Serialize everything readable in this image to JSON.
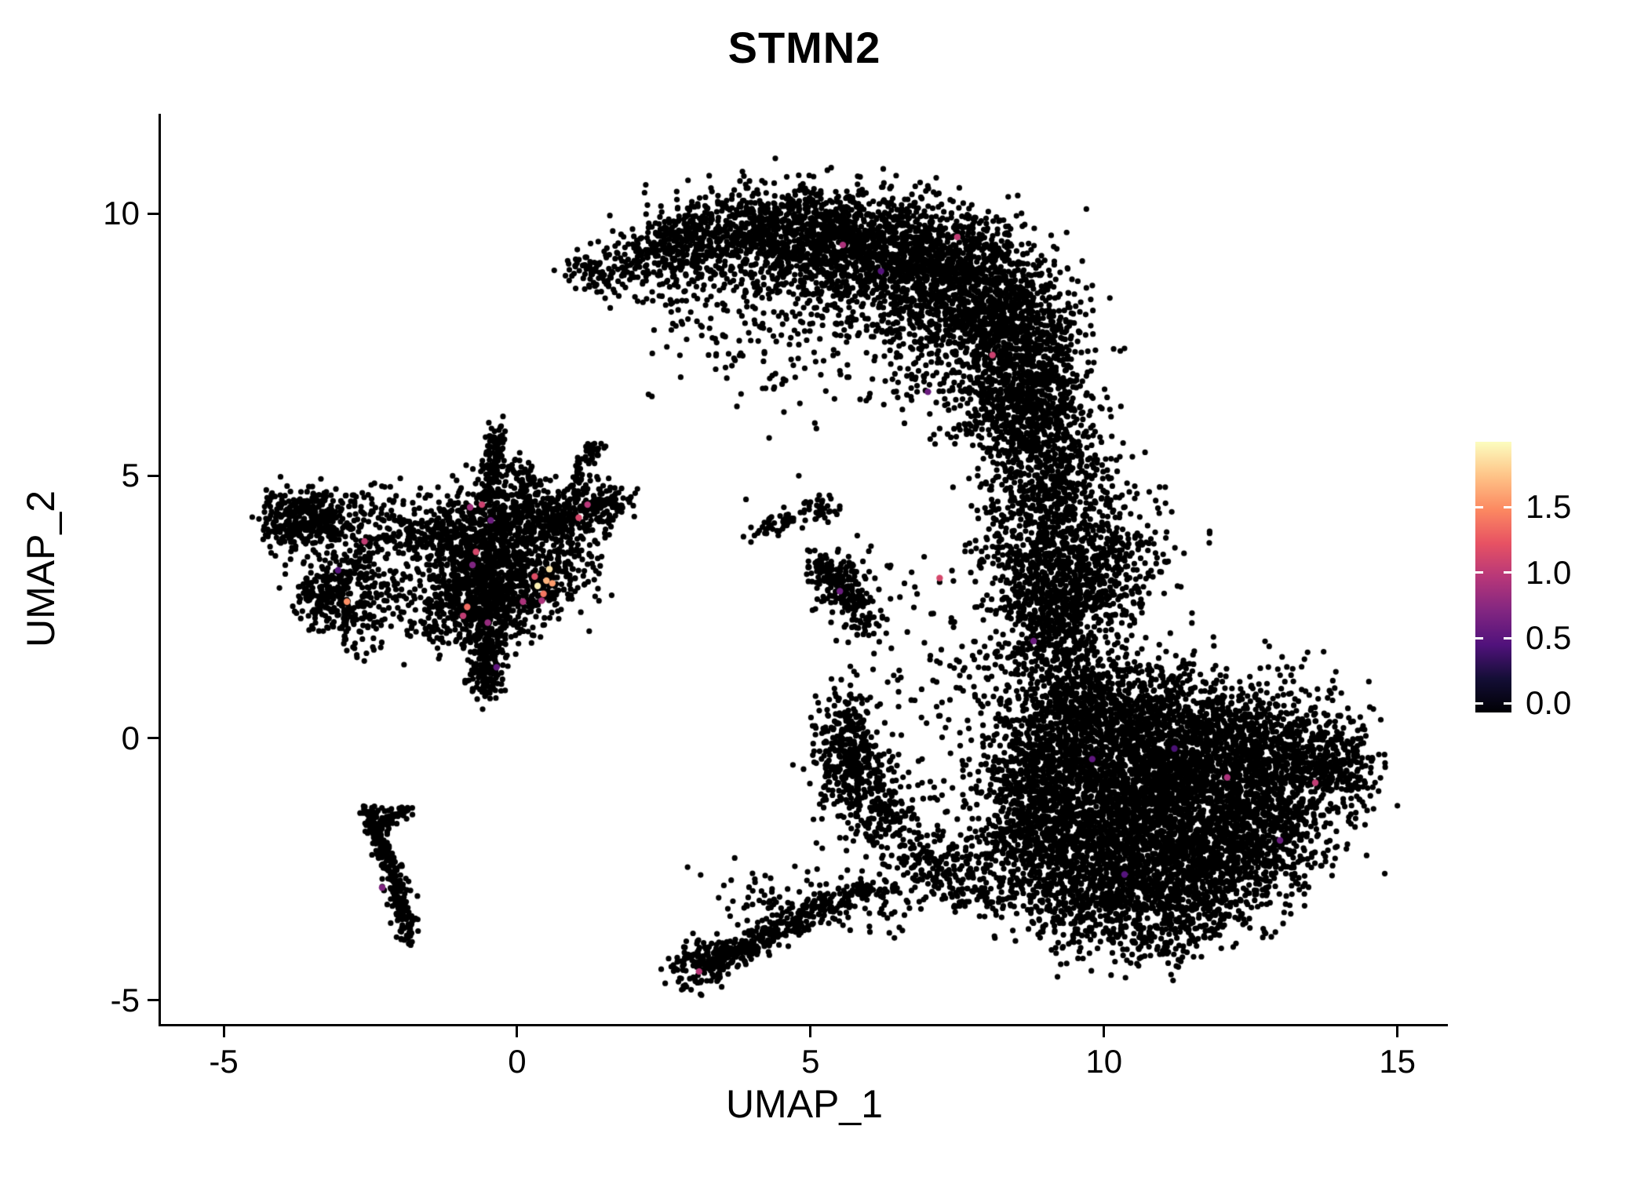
{
  "chart_data": {
    "type": "scatter",
    "title": "STMN2",
    "xlabel": "UMAP_1",
    "ylabel": "UMAP_2",
    "xlim": [
      -6.07,
      15.86
    ],
    "ylim": [
      -5.45,
      11.9
    ],
    "x_ticks": [
      {
        "v": -5,
        "label": "-5"
      },
      {
        "v": 0,
        "label": "0"
      },
      {
        "v": 5,
        "label": "5"
      },
      {
        "v": 10,
        "label": "10"
      },
      {
        "v": 15,
        "label": "15"
      }
    ],
    "y_ticks": [
      {
        "v": 10,
        "label": "10"
      },
      {
        "v": 5,
        "label": "5"
      },
      {
        "v": 0,
        "label": "0"
      },
      {
        "v": -5,
        "label": "-5"
      }
    ],
    "grid": false,
    "background": "#FFFFFF",
    "point_color": "#000000",
    "colorbar": {
      "vmin": -0.07,
      "vmax": 2.0,
      "data_max": 1.9,
      "ticks": [
        {
          "v": 0.0,
          "label": "0.0"
        },
        {
          "v": 0.5,
          "label": "0.5"
        },
        {
          "v": 1.0,
          "label": "1.0"
        },
        {
          "v": 1.5,
          "label": "1.5"
        }
      ],
      "stops": [
        "#000004",
        "#140E36",
        "#51127C",
        "#822681",
        "#B73779",
        "#E75263",
        "#FC8961",
        "#FEC488",
        "#FCFDBF"
      ]
    },
    "clusters": [
      {
        "c": [
          1.3,
          8.9
        ],
        "s": [
          0.25,
          0.2
        ],
        "n": 60
      },
      {
        "c": [
          2.0,
          9.1
        ],
        "s": [
          0.35,
          0.3
        ],
        "n": 110
      },
      {
        "c": [
          2.7,
          9.4
        ],
        "s": [
          0.4,
          0.35
        ],
        "n": 180
      },
      {
        "c": [
          3.5,
          9.6
        ],
        "s": [
          0.5,
          0.4
        ],
        "n": 280
      },
      {
        "c": [
          4.5,
          9.7
        ],
        "s": [
          0.6,
          0.45
        ],
        "n": 420
      },
      {
        "c": [
          5.6,
          9.5
        ],
        "s": [
          0.7,
          0.5
        ],
        "n": 560
      },
      {
        "c": [
          6.7,
          9.2
        ],
        "s": [
          0.8,
          0.55
        ],
        "n": 650
      },
      {
        "c": [
          7.6,
          8.7
        ],
        "s": [
          0.7,
          0.6
        ],
        "n": 600
      },
      {
        "c": [
          8.3,
          8.0
        ],
        "s": [
          0.6,
          0.6
        ],
        "n": 520
      },
      {
        "c": [
          8.7,
          7.1
        ],
        "s": [
          0.55,
          0.6
        ],
        "n": 470
      },
      {
        "c": [
          8.6,
          6.2
        ],
        "s": [
          0.6,
          0.5
        ],
        "n": 380
      },
      {
        "c": [
          6.0,
          8.3
        ],
        "s": [
          0.9,
          0.7
        ],
        "n": 170
      },
      {
        "c": [
          7.3,
          7.5
        ],
        "s": [
          0.8,
          0.7
        ],
        "n": 260
      },
      {
        "c": [
          5.0,
          8.8
        ],
        "s": [
          0.7,
          0.5
        ],
        "n": 190
      },
      {
        "c": [
          3.0,
          8.5
        ],
        "s": [
          0.5,
          0.5
        ],
        "n": 70
      },
      {
        "c": [
          3.6,
          7.7
        ],
        "s": [
          0.7,
          0.6
        ],
        "n": 55
      },
      {
        "c": [
          4.4,
          6.9
        ],
        "s": [
          0.5,
          0.5
        ],
        "n": 28
      },
      {
        "c": [
          8.9,
          5.5
        ],
        "s": [
          0.45,
          0.5
        ],
        "n": 230
      },
      {
        "c": [
          9.2,
          4.6
        ],
        "s": [
          0.5,
          0.55
        ],
        "n": 260
      },
      {
        "c": [
          9.0,
          3.7
        ],
        "s": [
          0.55,
          0.5
        ],
        "n": 280
      },
      {
        "c": [
          9.4,
          2.9
        ],
        "s": [
          0.6,
          0.5
        ],
        "n": 280
      },
      {
        "c": [
          8.3,
          4.6
        ],
        "s": [
          0.35,
          0.8
        ],
        "n": 70
      },
      {
        "c": [
          10.3,
          0.3
        ],
        "s": [
          0.7,
          0.7
        ],
        "n": 470
      },
      {
        "c": [
          11.2,
          0.2
        ],
        "s": [
          0.8,
          0.6
        ],
        "n": 470
      },
      {
        "c": [
          12.3,
          0.1
        ],
        "s": [
          0.8,
          0.6
        ],
        "n": 430
      },
      {
        "c": [
          13.3,
          -0.3
        ],
        "s": [
          0.6,
          0.5
        ],
        "n": 330
      },
      {
        "c": [
          14.0,
          -0.6
        ],
        "s": [
          0.35,
          0.4
        ],
        "n": 140
      },
      {
        "c": [
          10.6,
          -0.8
        ],
        "s": [
          0.9,
          0.7
        ],
        "n": 650
      },
      {
        "c": [
          11.8,
          -1.0
        ],
        "s": [
          0.9,
          0.7
        ],
        "n": 650
      },
      {
        "c": [
          12.9,
          -1.3
        ],
        "s": [
          0.7,
          0.6
        ],
        "n": 430
      },
      {
        "c": [
          10.2,
          -1.9
        ],
        "s": [
          0.8,
          0.6
        ],
        "n": 520
      },
      {
        "c": [
          11.3,
          -2.1
        ],
        "s": [
          0.8,
          0.6
        ],
        "n": 520
      },
      {
        "c": [
          12.3,
          -2.3
        ],
        "s": [
          0.7,
          0.5
        ],
        "n": 330
      },
      {
        "c": [
          10.6,
          -3.0
        ],
        "s": [
          0.7,
          0.5
        ],
        "n": 330
      },
      {
        "c": [
          11.6,
          -3.1
        ],
        "s": [
          0.6,
          0.45
        ],
        "n": 240
      },
      {
        "c": [
          9.4,
          -1.2
        ],
        "s": [
          0.6,
          0.8
        ],
        "n": 430
      },
      {
        "c": [
          9.0,
          -2.3
        ],
        "s": [
          0.5,
          0.6
        ],
        "n": 280
      },
      {
        "c": [
          9.6,
          -3.2
        ],
        "s": [
          0.5,
          0.45
        ],
        "n": 190
      },
      {
        "c": [
          10.9,
          -3.8
        ],
        "s": [
          0.5,
          0.3
        ],
        "n": 110
      },
      {
        "c": [
          9.6,
          0.9
        ],
        "s": [
          0.5,
          0.5
        ],
        "n": 280
      },
      {
        "c": [
          9.1,
          1.8
        ],
        "s": [
          0.45,
          0.55
        ],
        "n": 240
      },
      {
        "c": [
          9.4,
          0.0
        ],
        "s": [
          0.5,
          0.5
        ],
        "n": 280
      },
      {
        "c": [
          8.6,
          -0.6
        ],
        "s": [
          0.4,
          0.6
        ],
        "n": 190
      },
      {
        "c": [
          8.5,
          -1.8
        ],
        "s": [
          0.4,
          0.5
        ],
        "n": 140
      },
      {
        "c": [
          8.9,
          2.6
        ],
        "s": [
          0.4,
          0.5
        ],
        "n": 170
      },
      {
        "c": [
          10.0,
          2.8
        ],
        "s": [
          0.5,
          0.5
        ],
        "n": 190
      },
      {
        "c": [
          10.3,
          3.6
        ],
        "s": [
          0.5,
          0.5
        ],
        "n": 95
      },
      {
        "c": [
          9.7,
          4.4
        ],
        "s": [
          0.45,
          0.45
        ],
        "n": 75
      },
      {
        "c": [
          8.0,
          0.5
        ],
        "s": [
          0.6,
          1.0
        ],
        "n": 90
      },
      {
        "c": [
          7.9,
          -1.8
        ],
        "s": [
          0.5,
          0.6
        ],
        "n": 75
      },
      {
        "c": [
          5.6,
          -0.05
        ],
        "s": [
          0.3,
          0.5
        ],
        "n": 280
      },
      {
        "c": [
          5.9,
          -0.9
        ],
        "s": [
          0.4,
          0.4
        ],
        "n": 190
      },
      {
        "c": [
          6.3,
          -1.6
        ],
        "s": [
          0.4,
          0.4
        ],
        "n": 110
      },
      {
        "c": [
          6.8,
          -2.2
        ],
        "s": [
          0.4,
          0.35
        ],
        "n": 95
      },
      {
        "c": [
          7.3,
          -2.6
        ],
        "s": [
          0.4,
          0.3
        ],
        "n": 85
      },
      {
        "c": [
          7.9,
          -3.0
        ],
        "s": [
          0.4,
          0.3
        ],
        "n": 55
      },
      {
        "c": [
          6.9,
          1.4
        ],
        "s": [
          0.8,
          1.0
        ],
        "n": 55
      },
      {
        "c": [
          6.1,
          -3.3
        ],
        "s": [
          0.4,
          0.3
        ],
        "n": 38
      },
      {
        "c": [
          3.1,
          -4.3
        ],
        "s": [
          0.25,
          0.25
        ],
        "n": 110
      },
      {
        "a": [
          3.2,
          -4.35
        ],
        "b": [
          4.6,
          -3.6
        ],
        "w": 0.14,
        "n": 230
      },
      {
        "a": [
          4.6,
          -3.6
        ],
        "b": [
          5.5,
          -3.05
        ],
        "w": 0.12,
        "n": 140
      },
      {
        "c": [
          4.3,
          -3.15
        ],
        "s": [
          0.6,
          0.35
        ],
        "n": 75
      },
      {
        "a": [
          5.7,
          -2.85
        ],
        "b": [
          6.4,
          -2.9
        ],
        "w": 0.1,
        "n": 45
      },
      {
        "a": [
          5.1,
          3.4
        ],
        "b": [
          5.9,
          2.5
        ],
        "w": 0.14,
        "n": 140
      },
      {
        "c": [
          5.5,
          2.95
        ],
        "s": [
          0.3,
          0.3
        ],
        "n": 90
      },
      {
        "c": [
          5.95,
          2.2
        ],
        "s": [
          0.2,
          0.2
        ],
        "n": 36
      },
      {
        "c": [
          5.15,
          4.35
        ],
        "s": [
          0.2,
          0.12
        ],
        "n": 38
      },
      {
        "c": [
          4.55,
          4.1
        ],
        "s": [
          0.18,
          0.12
        ],
        "n": 32
      },
      {
        "c": [
          4.15,
          3.9
        ],
        "s": [
          0.15,
          0.1
        ],
        "n": 12
      },
      {
        "c": [
          -0.5,
          3.4
        ],
        "s": [
          0.5,
          0.6
        ],
        "n": 470
      },
      {
        "c": [
          -0.2,
          4.2
        ],
        "s": [
          0.5,
          0.35
        ],
        "n": 280
      },
      {
        "c": [
          0.6,
          4.3
        ],
        "s": [
          0.45,
          0.3
        ],
        "n": 230
      },
      {
        "c": [
          1.3,
          4.4
        ],
        "s": [
          0.3,
          0.2
        ],
        "n": 110
      },
      {
        "c": [
          1.7,
          4.5
        ],
        "s": [
          0.18,
          0.15
        ],
        "n": 28
      },
      {
        "c": [
          -1.3,
          3.9
        ],
        "s": [
          0.4,
          0.35
        ],
        "n": 210
      },
      {
        "c": [
          -1.0,
          2.8
        ],
        "s": [
          0.4,
          0.4
        ],
        "n": 230
      },
      {
        "c": [
          -0.4,
          2.6
        ],
        "s": [
          0.35,
          0.35
        ],
        "n": 210
      },
      {
        "c": [
          0.3,
          3.0
        ],
        "s": [
          0.4,
          0.4
        ],
        "n": 230
      },
      {
        "c": [
          0.9,
          3.4
        ],
        "s": [
          0.4,
          0.4
        ],
        "n": 75
      },
      {
        "c": [
          -0.5,
          1.9
        ],
        "s": [
          0.2,
          0.3
        ],
        "n": 110
      },
      {
        "c": [
          -0.55,
          1.3
        ],
        "s": [
          0.15,
          0.25
        ],
        "n": 90
      },
      {
        "c": [
          -0.5,
          0.95
        ],
        "s": [
          0.12,
          0.12
        ],
        "n": 35
      },
      {
        "c": [
          -0.4,
          5.0
        ],
        "s": [
          0.12,
          0.3
        ],
        "n": 75
      },
      {
        "c": [
          -0.35,
          5.6
        ],
        "s": [
          0.1,
          0.2
        ],
        "n": 45
      },
      {
        "c": [
          0.15,
          5.0
        ],
        "s": [
          0.15,
          0.2
        ],
        "n": 38
      },
      {
        "a": [
          0.95,
          4.8
        ],
        "b": [
          1.35,
          5.6
        ],
        "w": 0.08,
        "n": 55
      },
      {
        "c": [
          -2.9,
          3.0
        ],
        "s": [
          0.35,
          0.5
        ],
        "n": 260
      },
      {
        "c": [
          -3.3,
          2.6
        ],
        "s": [
          0.25,
          0.3
        ],
        "n": 110
      },
      {
        "c": [
          -3.6,
          4.3
        ],
        "s": [
          0.3,
          0.25
        ],
        "n": 170
      },
      {
        "c": [
          -4.0,
          4.1
        ],
        "s": [
          0.2,
          0.3
        ],
        "n": 110
      },
      {
        "c": [
          -3.3,
          4.0
        ],
        "s": [
          0.25,
          0.2
        ],
        "n": 95
      },
      {
        "c": [
          -2.2,
          3.9
        ],
        "s": [
          0.4,
          0.3
        ],
        "n": 65
      },
      {
        "c": [
          -2.5,
          4.4
        ],
        "s": [
          0.3,
          0.25
        ],
        "n": 48
      },
      {
        "c": [
          -2.6,
          2.0
        ],
        "s": [
          0.3,
          0.3
        ],
        "n": 28
      },
      {
        "c": [
          -1.8,
          2.6
        ],
        "s": [
          0.4,
          0.4
        ],
        "n": 55
      },
      {
        "c": [
          -1.4,
          2.0
        ],
        "s": [
          0.3,
          0.3
        ],
        "n": 45
      },
      {
        "a": [
          -2.55,
          -1.35
        ],
        "b": [
          -2.1,
          -2.6
        ],
        "w": 0.1,
        "n": 150
      },
      {
        "a": [
          -2.1,
          -2.6
        ],
        "b": [
          -1.88,
          -3.65
        ],
        "w": 0.09,
        "n": 130
      },
      {
        "a": [
          -2.35,
          -1.7
        ],
        "b": [
          -1.8,
          -1.25
        ],
        "w": 0.08,
        "n": 60
      },
      {
        "c": [
          -1.9,
          -3.75
        ],
        "s": [
          0.1,
          0.1
        ],
        "n": 18
      }
    ],
    "singles": [
      [
        3.9,
        4.55
      ],
      [
        4.25,
        3.9
      ],
      [
        6.35,
        3.25
      ],
      [
        6.6,
        2.95
      ],
      [
        4.8,
        5.0
      ],
      [
        2.05,
        4.75
      ],
      [
        7.6,
        0.9
      ],
      [
        7.3,
        0.2
      ],
      [
        6.9,
        -0.4
      ],
      [
        6.5,
        0.6
      ],
      [
        8.2,
        3.4
      ],
      [
        8.0,
        4.3
      ],
      [
        8.3,
        5.2
      ],
      [
        4.95,
        -2.55
      ],
      [
        5.2,
        -2.1
      ],
      [
        5.05,
        -1.55
      ],
      [
        5.5,
        -1.9
      ],
      [
        4.2,
        8.1
      ],
      [
        4.8,
        7.5
      ],
      [
        5.5,
        7.0
      ],
      [
        6.0,
        6.5
      ],
      [
        6.6,
        6.0
      ],
      [
        3.9,
        8.5
      ],
      [
        3.3,
        8.0
      ],
      [
        2.6,
        8.6
      ],
      [
        7.2,
        5.9
      ],
      [
        5.1,
        5.9
      ]
    ],
    "highlights": [
      [
        0.35,
        2.9,
        1.85
      ],
      [
        0.5,
        3.0,
        1.6
      ],
      [
        0.45,
        2.75,
        1.35
      ],
      [
        0.6,
        2.95,
        1.5
      ],
      [
        0.3,
        3.08,
        1.15
      ],
      [
        0.55,
        3.22,
        1.8
      ],
      [
        0.42,
        2.62,
        0.9
      ],
      [
        -0.85,
        2.5,
        1.3
      ],
      [
        -0.92,
        2.33,
        1.0
      ],
      [
        -0.7,
        3.55,
        1.1
      ],
      [
        -0.76,
        3.3,
        0.7
      ],
      [
        -0.6,
        4.45,
        1.05
      ],
      [
        -0.8,
        4.4,
        0.85
      ],
      [
        -0.45,
        4.15,
        0.6
      ],
      [
        1.05,
        4.2,
        1.1
      ],
      [
        1.2,
        4.45,
        0.95
      ],
      [
        -2.9,
        2.6,
        1.45
      ],
      [
        -2.6,
        3.75,
        1.0
      ],
      [
        -3.05,
        3.2,
        0.5
      ],
      [
        -0.35,
        1.35,
        0.55
      ],
      [
        -0.5,
        2.2,
        0.8
      ],
      [
        0.1,
        2.6,
        0.9
      ],
      [
        5.55,
        9.4,
        0.9
      ],
      [
        7.5,
        9.55,
        1.0
      ],
      [
        8.1,
        7.3,
        1.05
      ],
      [
        7.0,
        6.6,
        0.6
      ],
      [
        6.2,
        8.9,
        0.5
      ],
      [
        7.2,
        3.05,
        1.1
      ],
      [
        5.5,
        2.8,
        0.6
      ],
      [
        8.8,
        1.85,
        0.6
      ],
      [
        9.8,
        -0.4,
        0.55
      ],
      [
        12.1,
        -0.75,
        0.9
      ],
      [
        13.6,
        -0.85,
        1.0
      ],
      [
        13.0,
        -1.95,
        0.6
      ],
      [
        10.35,
        -2.6,
        0.5
      ],
      [
        11.2,
        -0.2,
        0.45
      ],
      [
        -2.3,
        -2.85,
        0.7
      ],
      [
        3.1,
        -4.45,
        0.95
      ]
    ]
  }
}
